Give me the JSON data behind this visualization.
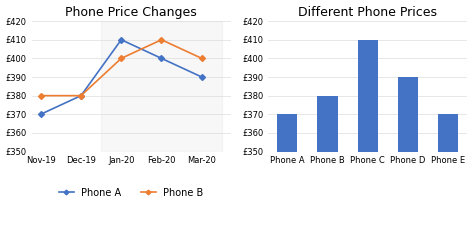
{
  "line_title": "Phone Price Changes",
  "bar_title": "Different Phone Prices",
  "line_x": [
    "Nov-19",
    "Dec-19",
    "Jan-20",
    "Feb-20",
    "Mar-20"
  ],
  "phone_a": [
    370,
    380,
    410,
    400,
    390
  ],
  "phone_b": [
    380,
    380,
    400,
    410,
    400
  ],
  "line_ylim": [
    350,
    420
  ],
  "line_yticks": [
    350,
    360,
    370,
    380,
    390,
    400,
    410,
    420
  ],
  "bar_categories": [
    "Phone A",
    "Phone B",
    "Phone C",
    "Phone D",
    "Phone E"
  ],
  "bar_values": [
    370,
    380,
    410,
    390,
    370
  ],
  "bar_ylim": [
    350,
    420
  ],
  "bar_yticks": [
    350,
    360,
    370,
    380,
    390,
    400,
    410,
    420
  ],
  "bar_color": "#4472C4",
  "line_color_a": "#4472C4",
  "line_color_b": "#ED7D31",
  "background_color": "#ffffff",
  "grid_color": "#dddddd",
  "legend_a": "Phone A",
  "legend_b": "Phone B",
  "title_fontsize": 9,
  "tick_fontsize": 6,
  "legend_fontsize": 7
}
